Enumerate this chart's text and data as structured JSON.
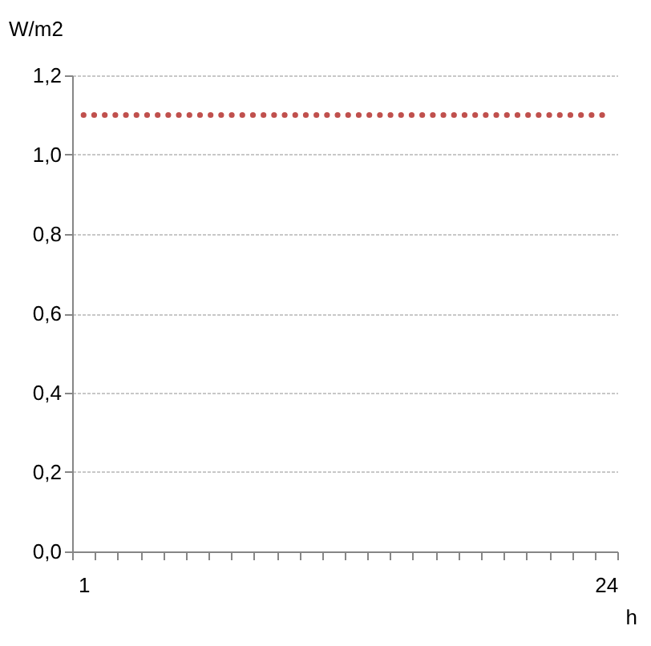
{
  "chart_data": {
    "type": "line",
    "ylabel": "W/m2",
    "xlabel": "h",
    "categories": [
      "1",
      null,
      null,
      null,
      null,
      null,
      null,
      null,
      null,
      null,
      null,
      null,
      null,
      null,
      null,
      null,
      null,
      null,
      null,
      null,
      null,
      null,
      null,
      "24"
    ],
    "series": [
      {
        "color": "#c0504d",
        "values": [
          1.1,
          1.1,
          1.1,
          1.1,
          1.1,
          1.1,
          1.1,
          1.1,
          1.1,
          1.1,
          1.1,
          1.1,
          1.1,
          1.1,
          1.1,
          1.1,
          1.1,
          1.1,
          1.1,
          1.1,
          1.1,
          1.1,
          1.1,
          1.1
        ]
      }
    ],
    "ylim": [
      0,
      1.2
    ],
    "yticks": [
      {
        "value": 0,
        "label": "0,0"
      },
      {
        "value": 0.2,
        "label": "0,2"
      },
      {
        "value": 0.4,
        "label": "0,4"
      },
      {
        "value": 0.6,
        "label": "0,6"
      },
      {
        "value": 0.8,
        "label": "0,8"
      },
      {
        "value": 1,
        "label": "1,0"
      },
      {
        "value": 1.2,
        "label": "1,2"
      }
    ],
    "grid": "y",
    "line_style": "dotted",
    "marker": "none"
  }
}
